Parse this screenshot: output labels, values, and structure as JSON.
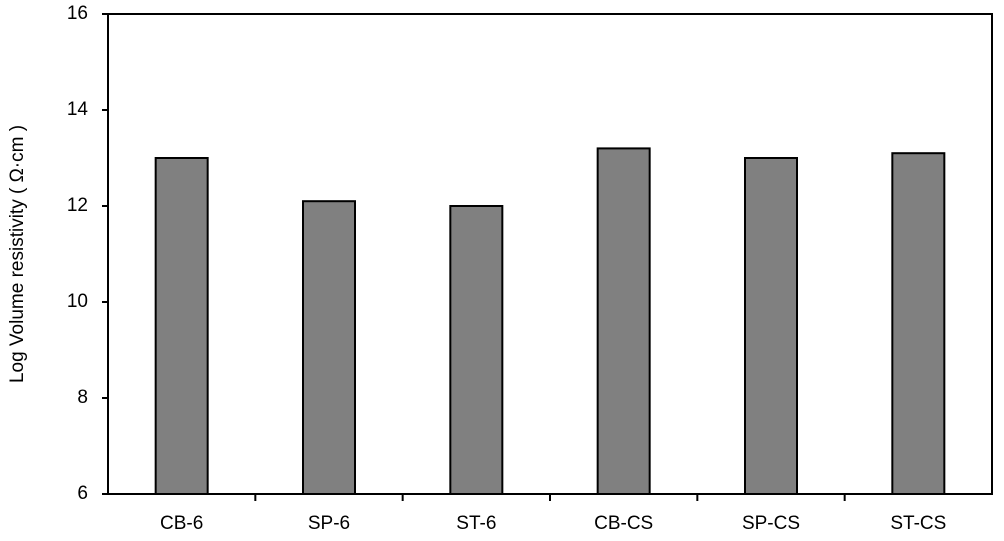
{
  "chart_data": {
    "type": "bar",
    "ylabel": "Log Volume resistivity ( Ω·cm )",
    "categories": [
      "CB-6",
      "SP-6",
      "ST-6",
      "CB-CS",
      "SP-CS",
      "ST-CS"
    ],
    "values": [
      13.0,
      12.1,
      12.0,
      13.2,
      13.0,
      13.1
    ],
    "color": "#808080",
    "ylim": [
      6,
      16
    ],
    "yticks": [
      6,
      8,
      10,
      12,
      14,
      16
    ],
    "grid": false
  }
}
